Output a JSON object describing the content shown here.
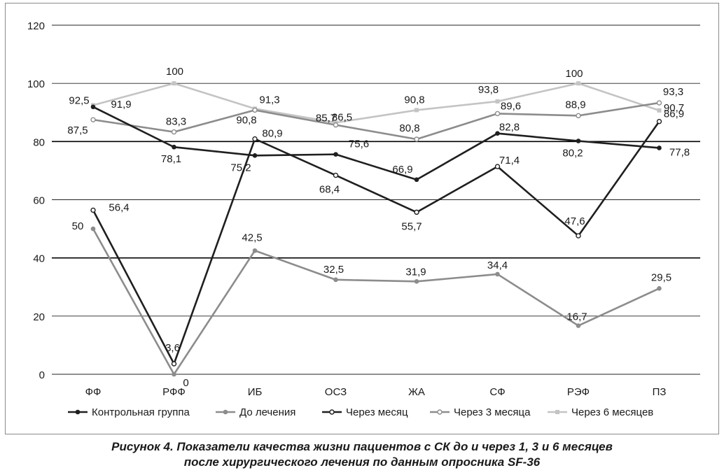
{
  "chart_data": {
    "type": "line",
    "categories": [
      "ФФ",
      "РФФ",
      "ИБ",
      "ОСЗ",
      "ЖА",
      "СФ",
      "РЭФ",
      "ПЗ"
    ],
    "ylim": [
      0,
      120
    ],
    "yticks": [
      0,
      20,
      40,
      60,
      80,
      100,
      120
    ],
    "grid": true,
    "legend_position": "bottom",
    "series": [
      {
        "name": "Контрольная группа",
        "values": [
          91.9,
          78.1,
          75.2,
          75.6,
          66.9,
          82.8,
          80.2,
          77.8
        ],
        "labels": [
          "91,9",
          "78,1",
          "75,2",
          "75,6",
          "66,9",
          "82,8",
          "80,2",
          "77,8"
        ],
        "color": "#1f1f1f",
        "marker": "filled"
      },
      {
        "name": "До лечения",
        "values": [
          50,
          0,
          42.5,
          32.5,
          31.9,
          34.4,
          16.7,
          29.5
        ],
        "labels": [
          "50",
          "0",
          "42,5",
          "32,5",
          "31,9",
          "34,4",
          "16,7",
          "29,5"
        ],
        "color": "#8c8c8c",
        "marker": "filled"
      },
      {
        "name": "Через месяц",
        "values": [
          56.4,
          3.6,
          80.9,
          68.4,
          55.7,
          71.4,
          47.6,
          86.9
        ],
        "labels": [
          "56,4",
          "3,6",
          "80,9",
          "68,4",
          "55,7",
          "71,4",
          "47,6",
          "86,9"
        ],
        "color": "#1f1f1f",
        "marker": "hollow"
      },
      {
        "name": "Через 3 месяца",
        "values": [
          87.5,
          83.3,
          90.8,
          85.7,
          80.8,
          89.6,
          88.9,
          93.3
        ],
        "labels": [
          "87,5",
          "83,3",
          "90,8",
          "85,7",
          "80,8",
          "89,6",
          "88,9",
          "93,3"
        ],
        "color": "#8c8c8c",
        "marker": "hollow"
      },
      {
        "name": "Через 6 месяцев",
        "values": [
          92.5,
          100,
          91.3,
          86.5,
          90.8,
          93.8,
          100,
          90.7
        ],
        "labels": [
          "92,5",
          "100",
          "91,3",
          "86,5",
          "90,8",
          "93,8",
          "100",
          "90,7"
        ],
        "color": "#c4c4c4",
        "marker": "square"
      }
    ]
  },
  "caption": {
    "line1": "Рисунок 4. Показатели качества жизни пациентов с СК до и через 1, 3 и 6 месяцев",
    "line2": "после хирургического лечения по данным опросника SF-36"
  }
}
